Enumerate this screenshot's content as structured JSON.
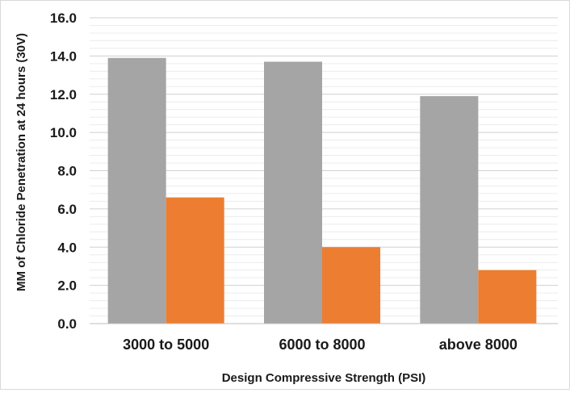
{
  "chart_data": {
    "type": "bar",
    "title": "",
    "xlabel": "Design Compressive Strength (PSI)",
    "ylabel": "MM of Chloride Penetration at 24 hours (30V)",
    "categories": [
      "3000 to 5000",
      "6000 to 8000",
      "above 8000"
    ],
    "series": [
      {
        "values": [
          13.9,
          13.7,
          11.9
        ],
        "color": "#a5a5a5"
      },
      {
        "values": [
          6.6,
          4.0,
          2.8
        ],
        "color": "#ed7d31"
      }
    ],
    "ylim": [
      0,
      16
    ],
    "yticks": [
      "0.0",
      "2.0",
      "4.0",
      "6.0",
      "8.0",
      "10.0",
      "12.0",
      "14.0",
      "16.0"
    ],
    "grid": true,
    "legend": "none"
  }
}
